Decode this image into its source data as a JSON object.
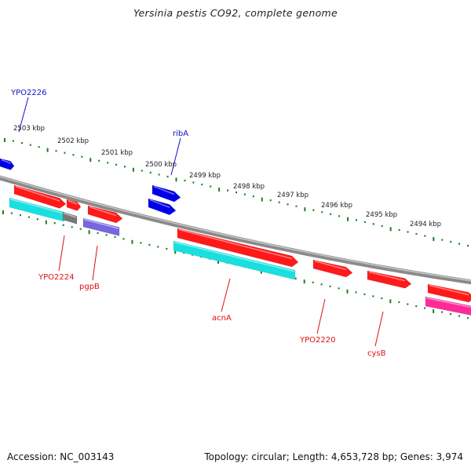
{
  "title": "Yersinia pestis CO92, complete genome",
  "footer": {
    "accession": "Accession: NC_003143",
    "summary": "Topology: circular; Length: 4,653,728 bp; Genes: 3,974"
  },
  "colors": {
    "backbone": "#8a8a8a",
    "ticks": "#1e7d1e",
    "forward_gene": "#0000e6",
    "reverse_gene": "#ff1a1a",
    "cds_cyan": "#19e0e0",
    "cds_purple": "#7766dd",
    "cds_grey": "#777777",
    "cds_pink": "#ff2a9a",
    "forward_label": "#1010cc",
    "reverse_label": "#dd1111"
  },
  "kbp_labels": [
    "2503 kbp",
    "2502 kbp",
    "2501 kbp",
    "2500 kbp",
    "2499 kbp",
    "2498 kbp",
    "2497 kbp",
    "2496 kbp",
    "2495 kbp",
    "2494 kbp"
  ],
  "gene_labels": {
    "forward": [
      "YPO2226",
      "ribA"
    ],
    "reverse": [
      "YPO2224",
      "pgpB",
      "acnA",
      "YPO2220",
      "cysB"
    ]
  }
}
